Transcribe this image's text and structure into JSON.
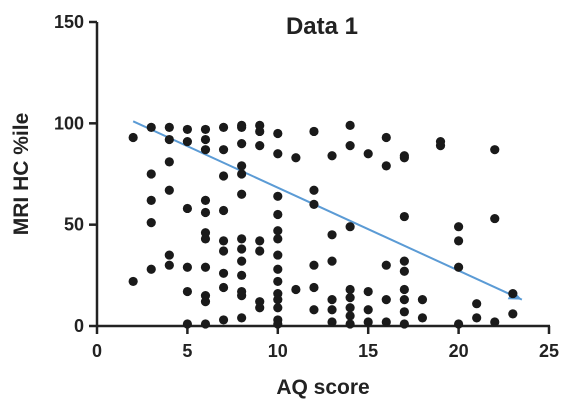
{
  "chart_data": {
    "type": "scatter",
    "title": "Data 1",
    "xlabel": "AQ score",
    "ylabel": "MRI HC %ile",
    "xlim": [
      0,
      25
    ],
    "ylim": [
      0,
      150
    ],
    "xticks": [
      "0",
      "5",
      "10",
      "15",
      "20",
      "25"
    ],
    "yticks": [
      "0",
      "50",
      "100",
      "150"
    ],
    "xtick_values": [
      0,
      5,
      10,
      15,
      20,
      25
    ],
    "ytick_values": [
      0,
      50,
      100,
      150
    ],
    "grid": false,
    "point_color": "#1a1a1a",
    "trend_color": "#5b9bd5",
    "trend_line": {
      "x": [
        2,
        23.5
      ],
      "y": [
        101,
        13
      ]
    },
    "points": [
      [
        2,
        93
      ],
      [
        2,
        22
      ],
      [
        3,
        98
      ],
      [
        3,
        75
      ],
      [
        3,
        62
      ],
      [
        3,
        51
      ],
      [
        3,
        28
      ],
      [
        4,
        98
      ],
      [
        4,
        92
      ],
      [
        4,
        81
      ],
      [
        4,
        67
      ],
      [
        4,
        35
      ],
      [
        4,
        30
      ],
      [
        5,
        97
      ],
      [
        5,
        91
      ],
      [
        5,
        58
      ],
      [
        5,
        29
      ],
      [
        5,
        17
      ],
      [
        5,
        1
      ],
      [
        6,
        97
      ],
      [
        6,
        92
      ],
      [
        6,
        87
      ],
      [
        6,
        62
      ],
      [
        6,
        56
      ],
      [
        6,
        46
      ],
      [
        6,
        43
      ],
      [
        6,
        29
      ],
      [
        6,
        15
      ],
      [
        6,
        12
      ],
      [
        6,
        1
      ],
      [
        7,
        98
      ],
      [
        7,
        87
      ],
      [
        7,
        74
      ],
      [
        7,
        57
      ],
      [
        7,
        42
      ],
      [
        7,
        37
      ],
      [
        7,
        26
      ],
      [
        7,
        19
      ],
      [
        7,
        3
      ],
      [
        8,
        99
      ],
      [
        8,
        98
      ],
      [
        8,
        90
      ],
      [
        8,
        79
      ],
      [
        8,
        75
      ],
      [
        8,
        65
      ],
      [
        8,
        43
      ],
      [
        8,
        38
      ],
      [
        8,
        32
      ],
      [
        8,
        25
      ],
      [
        8,
        17
      ],
      [
        8,
        15
      ],
      [
        8,
        4
      ],
      [
        9,
        99
      ],
      [
        9,
        96
      ],
      [
        9,
        89
      ],
      [
        9,
        42
      ],
      [
        9,
        37
      ],
      [
        9,
        12
      ],
      [
        9,
        9
      ],
      [
        10,
        95
      ],
      [
        10,
        85
      ],
      [
        10,
        64
      ],
      [
        10,
        55
      ],
      [
        10,
        47
      ],
      [
        10,
        43
      ],
      [
        10,
        35
      ],
      [
        10,
        28
      ],
      [
        10,
        22
      ],
      [
        10,
        16
      ],
      [
        10,
        13
      ],
      [
        10,
        9
      ],
      [
        10,
        3
      ],
      [
        10,
        1
      ],
      [
        11,
        83
      ],
      [
        11,
        18
      ],
      [
        12,
        96
      ],
      [
        12,
        67
      ],
      [
        12,
        60
      ],
      [
        12,
        30
      ],
      [
        12,
        19
      ],
      [
        12,
        8
      ],
      [
        13,
        84
      ],
      [
        13,
        45
      ],
      [
        13,
        32
      ],
      [
        13,
        13
      ],
      [
        13,
        8
      ],
      [
        13,
        2
      ],
      [
        14,
        99
      ],
      [
        14,
        89
      ],
      [
        14,
        49
      ],
      [
        14,
        18
      ],
      [
        14,
        14
      ],
      [
        14,
        9
      ],
      [
        14,
        5
      ],
      [
        14,
        1
      ],
      [
        15,
        85
      ],
      [
        15,
        17
      ],
      [
        15,
        8
      ],
      [
        15,
        2
      ],
      [
        16,
        93
      ],
      [
        16,
        79
      ],
      [
        16,
        30
      ],
      [
        16,
        13
      ],
      [
        16,
        2
      ],
      [
        17,
        84
      ],
      [
        17,
        83
      ],
      [
        17,
        54
      ],
      [
        17,
        32
      ],
      [
        17,
        27
      ],
      [
        17,
        18
      ],
      [
        17,
        13
      ],
      [
        17,
        7
      ],
      [
        17,
        1
      ],
      [
        18,
        13
      ],
      [
        18,
        4
      ],
      [
        19,
        91
      ],
      [
        19,
        89
      ],
      [
        20,
        49
      ],
      [
        20,
        42
      ],
      [
        20,
        29
      ],
      [
        20,
        1
      ],
      [
        21,
        11
      ],
      [
        21,
        4
      ],
      [
        22,
        87
      ],
      [
        22,
        53
      ],
      [
        22,
        2
      ],
      [
        23,
        16
      ],
      [
        23,
        6
      ]
    ]
  }
}
